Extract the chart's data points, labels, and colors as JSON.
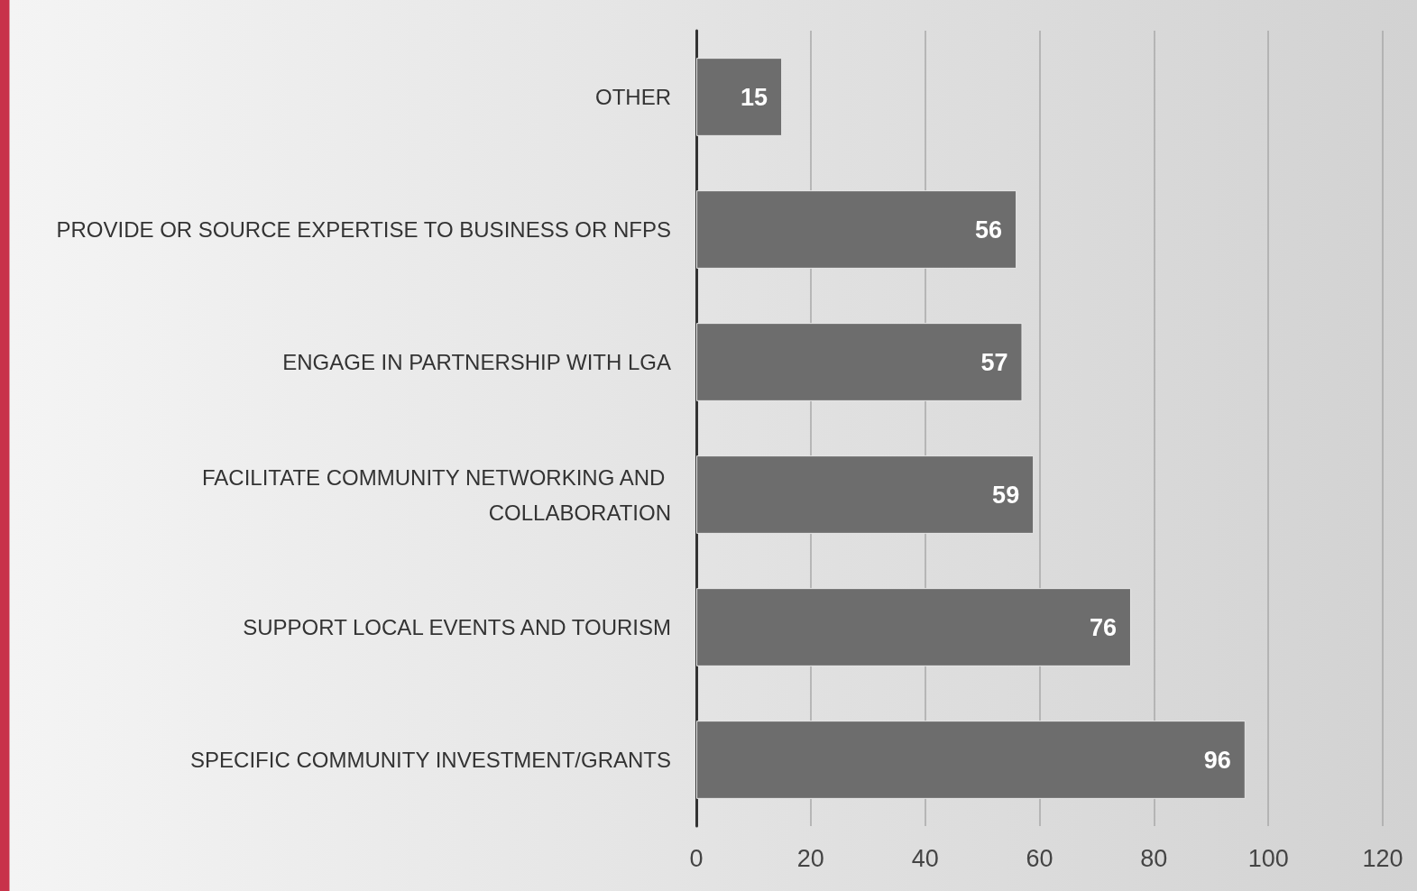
{
  "chart_data": {
    "type": "bar",
    "orientation": "horizontal",
    "categories": [
      "OTHER",
      "PROVIDE OR SOURCE EXPERTISE TO BUSINESS OR NFPS",
      "ENGAGE IN PARTNERSHIP WITH LGA",
      "FACILITATE COMMUNITY NETWORKING AND COLLABORATION",
      "SUPPORT LOCAL EVENTS AND TOURISM",
      "SPECIFIC COMMUNITY INVESTMENT/GRANTS"
    ],
    "values": [
      15,
      56,
      57,
      59,
      76,
      96
    ],
    "color": "#6d6d6d",
    "xlim": [
      0,
      120
    ],
    "xticks": [
      0,
      20,
      40,
      60,
      80,
      100,
      120
    ],
    "grid": "x",
    "data_labels": true
  }
}
